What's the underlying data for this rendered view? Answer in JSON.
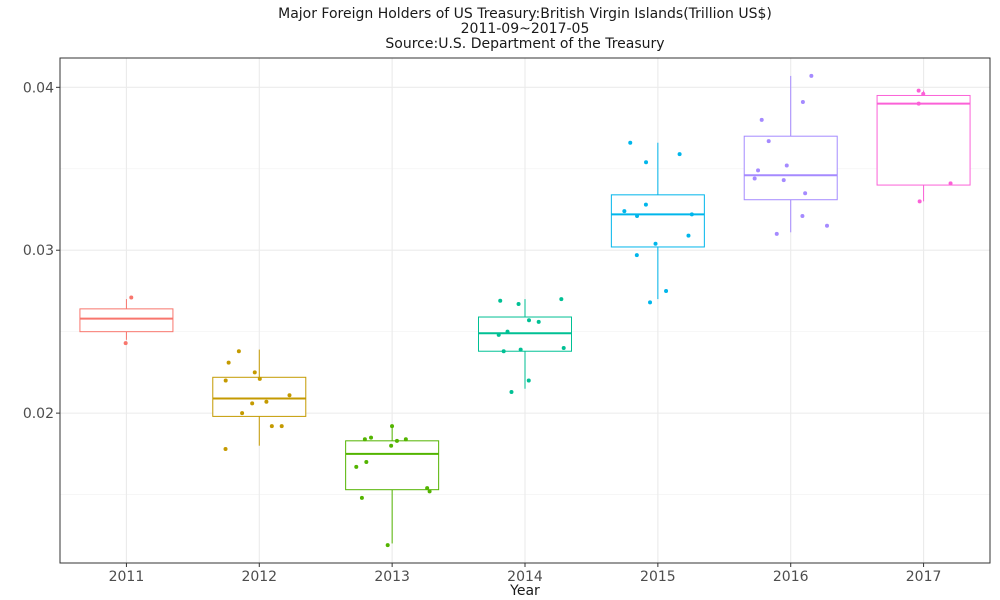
{
  "chart_data": {
    "type": "boxplot",
    "title": "Major Foreign Holders of US Treasury:British Virgin Islands(Trillion US$)",
    "subtitle": "2011-09~2017-05",
    "source": "Source:U.S. Department of the Treasury",
    "xlabel": "Year",
    "ylabel": "",
    "categories": [
      "2011",
      "2012",
      "2013",
      "2014",
      "2015",
      "2016",
      "2017"
    ],
    "ylim": [
      0.0108,
      0.0418
    ],
    "yticks": [
      0.02,
      0.03,
      0.04
    ],
    "ytick_labels": [
      "0.02",
      "0.03",
      "0.04"
    ],
    "grid": true,
    "legend": "none",
    "series": [
      {
        "category": "2011",
        "color": "#F8766D",
        "stats": {
          "lower_whisker": 0.0245,
          "q1": 0.025,
          "median": 0.0258,
          "q3": 0.0264,
          "upper_whisker": 0.027
        },
        "points": [
          {
            "x": "2011",
            "y": 0.0243
          },
          {
            "x": "2011",
            "y": 0.0271
          }
        ]
      },
      {
        "category": "2012",
        "color": "#C49A00",
        "stats": {
          "lower_whisker": 0.018,
          "q1": 0.0198,
          "median": 0.0209,
          "q3": 0.0222,
          "upper_whisker": 0.0239
        },
        "points": [
          {
            "x": "2012",
            "y": 0.0231
          },
          {
            "x": "2012",
            "y": 0.0238
          },
          {
            "x": "2012",
            "y": 0.0225
          },
          {
            "x": "2012",
            "y": 0.0221
          },
          {
            "x": "2012",
            "y": 0.022
          },
          {
            "x": "2012",
            "y": 0.0211
          },
          {
            "x": "2012",
            "y": 0.0207
          },
          {
            "x": "2012",
            "y": 0.0206
          },
          {
            "x": "2012",
            "y": 0.02
          },
          {
            "x": "2012",
            "y": 0.0192
          },
          {
            "x": "2012",
            "y": 0.0192
          },
          {
            "x": "2012",
            "y": 0.0178
          }
        ]
      },
      {
        "category": "2013",
        "color": "#53B400",
        "stats": {
          "lower_whisker": 0.012,
          "q1": 0.0153,
          "median": 0.0175,
          "q3": 0.0183,
          "upper_whisker": 0.0192
        },
        "points": [
          {
            "x": "2013",
            "y": 0.0192
          },
          {
            "x": "2013",
            "y": 0.0185
          },
          {
            "x": "2013",
            "y": 0.0184
          },
          {
            "x": "2013",
            "y": 0.0184
          },
          {
            "x": "2013",
            "y": 0.0183
          },
          {
            "x": "2013",
            "y": 0.018
          },
          {
            "x": "2013",
            "y": 0.017
          },
          {
            "x": "2013",
            "y": 0.0167
          },
          {
            "x": "2013",
            "y": 0.0154
          },
          {
            "x": "2013",
            "y": 0.0152
          },
          {
            "x": "2013",
            "y": 0.0148
          },
          {
            "x": "2013",
            "y": 0.0119
          }
        ]
      },
      {
        "category": "2014",
        "color": "#00C094",
        "stats": {
          "lower_whisker": 0.0215,
          "q1": 0.0238,
          "median": 0.0249,
          "q3": 0.0259,
          "upper_whisker": 0.027
        },
        "points": [
          {
            "x": "2014",
            "y": 0.027
          },
          {
            "x": "2014",
            "y": 0.0269
          },
          {
            "x": "2014",
            "y": 0.0267
          },
          {
            "x": "2014",
            "y": 0.0257
          },
          {
            "x": "2014",
            "y": 0.0256
          },
          {
            "x": "2014",
            "y": 0.025
          },
          {
            "x": "2014",
            "y": 0.0248
          },
          {
            "x": "2014",
            "y": 0.024
          },
          {
            "x": "2014",
            "y": 0.0239
          },
          {
            "x": "2014",
            "y": 0.0238
          },
          {
            "x": "2014",
            "y": 0.022
          },
          {
            "x": "2014",
            "y": 0.0213
          }
        ]
      },
      {
        "category": "2015",
        "color": "#00B6EB",
        "stats": {
          "lower_whisker": 0.027,
          "q1": 0.0302,
          "median": 0.0322,
          "q3": 0.0334,
          "upper_whisker": 0.0366
        },
        "points": [
          {
            "x": "2015",
            "y": 0.0366
          },
          {
            "x": "2015",
            "y": 0.0359
          },
          {
            "x": "2015",
            "y": 0.0354
          },
          {
            "x": "2015",
            "y": 0.0328
          },
          {
            "x": "2015",
            "y": 0.0324
          },
          {
            "x": "2015",
            "y": 0.0322
          },
          {
            "x": "2015",
            "y": 0.0321
          },
          {
            "x": "2015",
            "y": 0.0309
          },
          {
            "x": "2015",
            "y": 0.0304
          },
          {
            "x": "2015",
            "y": 0.0297
          },
          {
            "x": "2015",
            "y": 0.0275
          },
          {
            "x": "2015",
            "y": 0.0268
          }
        ]
      },
      {
        "category": "2016",
        "color": "#A58AFF",
        "stats": {
          "lower_whisker": 0.0311,
          "q1": 0.0331,
          "median": 0.0346,
          "q3": 0.037,
          "upper_whisker": 0.0407
        },
        "points": [
          {
            "x": "2016",
            "y": 0.0407
          },
          {
            "x": "2016",
            "y": 0.0391
          },
          {
            "x": "2016",
            "y": 0.038
          },
          {
            "x": "2016",
            "y": 0.0367
          },
          {
            "x": "2016",
            "y": 0.0352
          },
          {
            "x": "2016",
            "y": 0.0349
          },
          {
            "x": "2016",
            "y": 0.0344
          },
          {
            "x": "2016",
            "y": 0.0343
          },
          {
            "x": "2016",
            "y": 0.0335
          },
          {
            "x": "2016",
            "y": 0.0321
          },
          {
            "x": "2016",
            "y": 0.0315
          },
          {
            "x": "2016",
            "y": 0.031
          }
        ]
      },
      {
        "category": "2017",
        "color": "#FB61D7",
        "stats": {
          "lower_whisker": 0.033,
          "q1": 0.034,
          "median": 0.039,
          "q3": 0.0395,
          "upper_whisker": 0.0398
        },
        "points": [
          {
            "x": "2017",
            "y": 0.0398
          },
          {
            "x": "2017",
            "y": 0.0396
          },
          {
            "x": "2017",
            "y": 0.039
          },
          {
            "x": "2017",
            "y": 0.0341
          },
          {
            "x": "2017",
            "y": 0.033
          }
        ]
      }
    ]
  }
}
